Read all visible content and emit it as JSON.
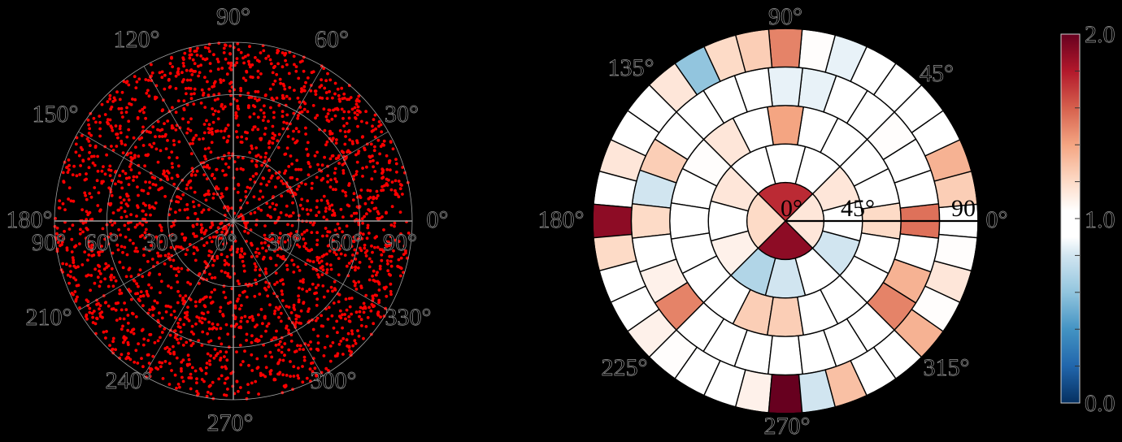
{
  "figure": {
    "background": "#000000",
    "panels": 2
  },
  "chart_data": [
    {
      "type": "scatter",
      "subtype": "polar-equal-area",
      "title": "",
      "description": "Polar scatter of ~2500 uniformly distributed points (red dots) on an equal-area polar projection",
      "point_color": "#ff0000",
      "approx_point_count": 2500,
      "grid_color": "#a0a0a0",
      "angular_tick_labels": [
        "0°",
        "30°",
        "60°",
        "90°",
        "120°",
        "150°",
        "180°",
        "210°",
        "240°",
        "270°",
        "300°",
        "330°"
      ],
      "angular_ticks_deg": [
        0,
        30,
        60,
        90,
        120,
        150,
        180,
        210,
        240,
        270,
        300,
        330
      ],
      "radial_tick_labels_left": [
        "90°",
        "60°",
        "30°"
      ],
      "radial_tick_labels_right": [
        "0°",
        "30°",
        "60°",
        "90°"
      ],
      "radial_ticks_deg": [
        30,
        60,
        90
      ],
      "rmax_deg": 90,
      "grid": true
    },
    {
      "type": "heatmap",
      "subtype": "polar-ring-heatmap",
      "title": "",
      "colormap": "RdBu_r",
      "vmin": 0.0,
      "vmax": 2.0,
      "colorbar_ticks": [
        "0.0",
        "1.0",
        "2.0"
      ],
      "angular_tick_labels": [
        "0°",
        "45°",
        "90°",
        "135°",
        "180°",
        "225°",
        "270°",
        "315°"
      ],
      "angular_ticks_deg": [
        0,
        45,
        90,
        135,
        180,
        225,
        270,
        315
      ],
      "radial_tick_labels": [
        "0°",
        "45°",
        "90°"
      ],
      "ring_edges_deg": [
        0,
        18,
        36,
        54,
        72,
        90
      ],
      "rings": [
        {
          "ring": 1,
          "cells": 4,
          "start_angle_deg": 0,
          "values": [
            1.15,
            1.75,
            1.2,
            1.9
          ]
        },
        {
          "ring": 2,
          "cells": 12,
          "start_angle_deg": 0,
          "values": [
            1.0,
            1.15,
            1.0,
            0.9,
            1.0,
            1.15,
            1.0,
            1.1,
            0.7,
            0.8,
            1.0,
            0.8
          ]
        },
        {
          "ring": 3,
          "cells": 20,
          "start_angle_deg": 0,
          "values": [
            1.2,
            1.0,
            1.0,
            1.0,
            0.95,
            1.4,
            1.0,
            1.15,
            1.05,
            1.0,
            1.0,
            1.0,
            0.95,
            1.0,
            1.25,
            1.25,
            1.0,
            1.0,
            1.0,
            1.0
          ]
        },
        {
          "ring": 4,
          "cells": 28,
          "start_angle_deg": 0,
          "values": [
            1.55,
            1.0,
            1.0,
            1.05,
            1.0,
            1.0,
            0.85,
            0.85,
            1.0,
            0.95,
            1.0,
            1.0,
            1.25,
            0.8,
            1.2,
            1.0,
            1.1,
            1.5,
            1.0,
            1.0,
            1.0,
            1.0,
            1.0,
            1.0,
            1.0,
            1.5,
            1.35,
            1.0
          ]
        },
        {
          "ring": 5,
          "cells": 36,
          "start_angle_deg": 0,
          "values": [
            1.0,
            1.25,
            1.35,
            1.0,
            1.0,
            1.0,
            1.0,
            0.85,
            1.05,
            1.5,
            1.25,
            1.2,
            0.6,
            1.15,
            1.0,
            1.0,
            1.15,
            1.0,
            1.9,
            1.2,
            1.0,
            1.0,
            1.1,
            1.05,
            1.0,
            1.0,
            1.1,
            2.0,
            0.8,
            1.3,
            1.0,
            1.0,
            1.35,
            1.05,
            1.15,
            1.05
          ]
        }
      ],
      "cell_note": "Cells in each ring are centered on multiples of 360/n degrees, listed counterclockwise from 0° (east)."
    }
  ],
  "labels": {
    "left": {
      "deg0": "0°",
      "deg30": "30°",
      "deg60": "60°",
      "deg90": "90°",
      "deg120": "120°",
      "deg150": "150°",
      "deg180": "180°",
      "deg210": "210°",
      "deg240": "240°",
      "deg270": "270°",
      "deg300": "300°",
      "deg330": "330°",
      "r_left_90": "90°",
      "r_left_60": "60°",
      "r_left_30": "30°",
      "r_center": "0°",
      "r_right_30": "30°",
      "r_right_60": "60°",
      "r_right_90": "90°"
    },
    "right": {
      "deg0": "0°",
      "deg45": "45°",
      "deg90": "90°",
      "deg135": "135°",
      "deg180": "180°",
      "deg225": "225°",
      "deg270": "270°",
      "deg315": "315°",
      "r0": "0°",
      "r45": "45°",
      "r90": "90°"
    },
    "colorbar": {
      "max": "2.0",
      "mid": "1.0",
      "min": "0.0"
    }
  }
}
